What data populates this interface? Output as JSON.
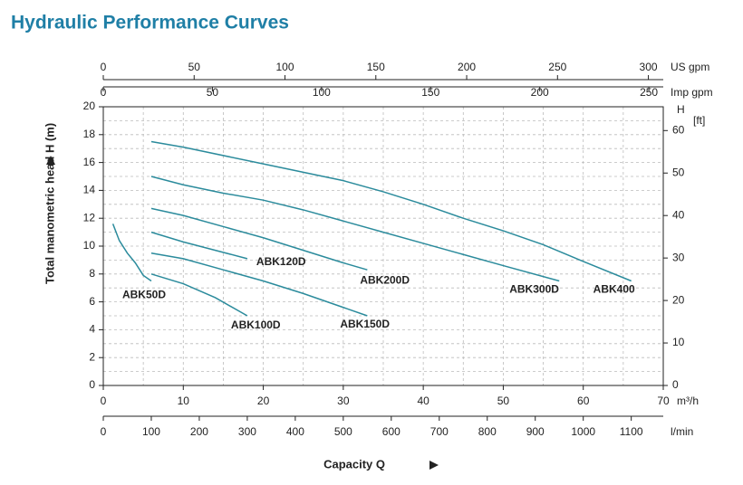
{
  "chart_data": {
    "type": "line",
    "title": "Hydraulic Performance Curves",
    "x_label": "Capacity Q",
    "y_label": "Total manometric head H (m)",
    "x_unit": "m³/h",
    "xlim": [
      0,
      70
    ],
    "xticks": [
      0,
      10,
      20,
      30,
      40,
      50,
      60,
      70
    ],
    "ylim": [
      0,
      20
    ],
    "yticks": [
      0,
      2,
      4,
      6,
      8,
      10,
      12,
      14,
      16,
      18,
      20
    ],
    "y2_label": [
      "H",
      "[ft]"
    ],
    "y2lim": [
      0,
      65.6
    ],
    "y2ticks": [
      0,
      10,
      20,
      30,
      40,
      50,
      60
    ],
    "extra_x_axes": [
      {
        "unit": "US gpm",
        "position": "top",
        "lim": [
          0,
          308.2
        ],
        "ticks": [
          0,
          50,
          100,
          150,
          200,
          250,
          300
        ]
      },
      {
        "unit": "Imp gpm",
        "position": "top",
        "lim": [
          0,
          256.6
        ],
        "ticks": [
          0,
          50,
          100,
          150,
          200,
          250
        ]
      },
      {
        "unit": "l/min",
        "position": "bottom",
        "lim": [
          0,
          1166.7
        ],
        "ticks": [
          0,
          100,
          200,
          300,
          400,
          500,
          600,
          700,
          800,
          900,
          1000,
          1100
        ]
      }
    ],
    "grid": true,
    "color": "#2b8b9c",
    "series": [
      {
        "name": "ABK50D",
        "x": [
          1.2,
          2,
          3,
          4,
          5,
          6
        ],
        "values": [
          11.6,
          10.4,
          9.5,
          8.8,
          7.9,
          7.5
        ]
      },
      {
        "name": "ABK100D",
        "x": [
          6,
          10,
          14,
          18
        ],
        "values": [
          8,
          7.3,
          6.3,
          5.0
        ]
      },
      {
        "name": "ABK120D",
        "x": [
          6,
          10,
          14,
          18
        ],
        "values": [
          11,
          10.3,
          9.7,
          9.1
        ]
      },
      {
        "name": "ABK150D",
        "x": [
          6,
          10,
          15,
          20,
          25,
          30,
          33
        ],
        "values": [
          9.5,
          9.1,
          8.3,
          7.5,
          6.6,
          5.6,
          5.0
        ]
      },
      {
        "name": "ABK200D",
        "x": [
          6,
          10,
          15,
          20,
          25,
          30,
          33
        ],
        "values": [
          12.7,
          12.2,
          11.4,
          10.6,
          9.7,
          8.8,
          8.3
        ]
      },
      {
        "name": "ABK300D",
        "x": [
          6,
          10,
          15,
          20,
          25,
          30,
          35,
          40,
          45,
          50,
          57
        ],
        "values": [
          15,
          14.4,
          13.8,
          13.3,
          12.6,
          11.8,
          11.0,
          10.2,
          9.4,
          8.6,
          7.5
        ]
      },
      {
        "name": "ABK400",
        "x": [
          6,
          10,
          20,
          30,
          35,
          40,
          45,
          50,
          55,
          60,
          66
        ],
        "values": [
          17.5,
          17.1,
          15.9,
          14.7,
          13.9,
          13.0,
          12.0,
          11.1,
          10.1,
          8.9,
          7.5
        ]
      }
    ]
  }
}
